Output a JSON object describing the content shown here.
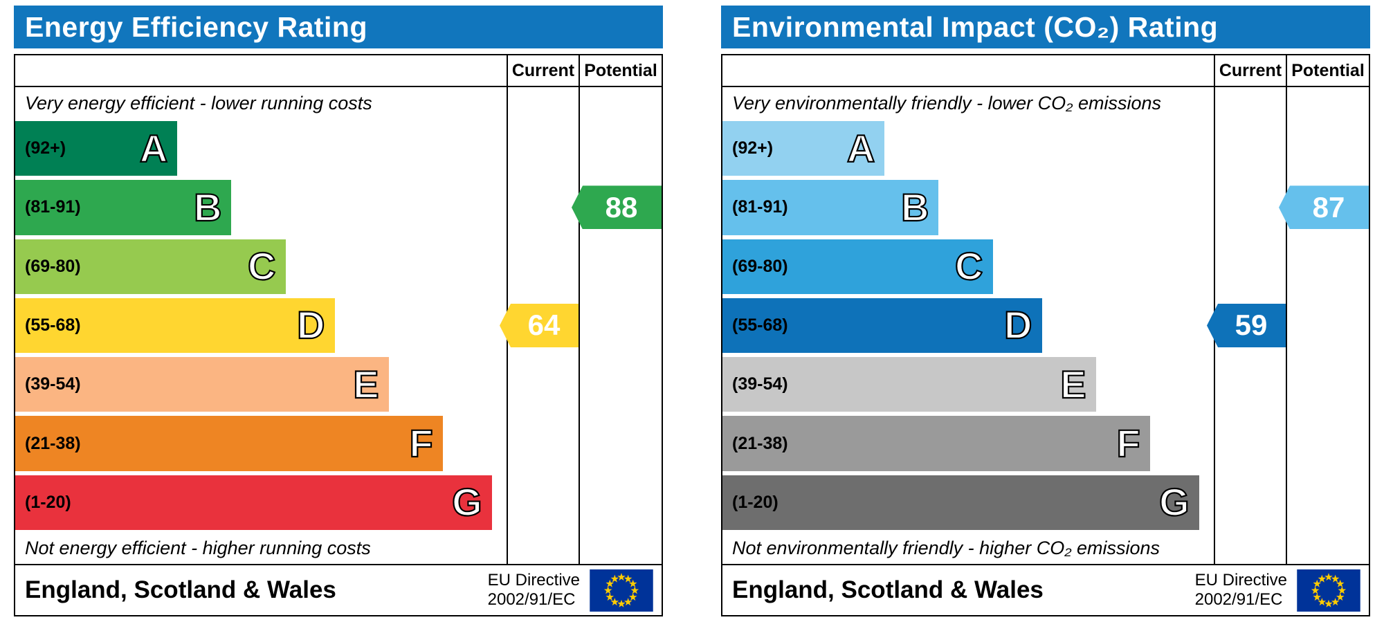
{
  "panels": [
    {
      "title": "Energy Efficiency Rating",
      "header_bg": "#1176bd",
      "columns": {
        "current": "Current",
        "potential": "Potential"
      },
      "top_note": "Very energy efficient - lower running costs",
      "bottom_note": "Not energy efficient - higher running costs",
      "bands": [
        {
          "letter": "A",
          "range": "(92+)",
          "color": "#008054",
          "width_pct": 33
        },
        {
          "letter": "B",
          "range": "(81-91)",
          "color": "#2ea84f",
          "width_pct": 44
        },
        {
          "letter": "C",
          "range": "(69-80)",
          "color": "#96ca4f",
          "width_pct": 55
        },
        {
          "letter": "D",
          "range": "(55-68)",
          "color": "#ffd630",
          "width_pct": 65
        },
        {
          "letter": "E",
          "range": "(39-54)",
          "color": "#fbb582",
          "width_pct": 76
        },
        {
          "letter": "F",
          "range": "(21-38)",
          "color": "#ee8523",
          "width_pct": 87
        },
        {
          "letter": "G",
          "range": "(1-20)",
          "color": "#e9323d",
          "width_pct": 97
        }
      ],
      "current": {
        "value": "64",
        "band": "D",
        "color": "#ffd630"
      },
      "potential": {
        "value": "88",
        "band": "B",
        "color": "#2ea84f"
      },
      "footer": {
        "region": "England, Scotland & Wales",
        "directive_line1": "EU Directive",
        "directive_line2": "2002/91/EC"
      }
    },
    {
      "title": "Environmental Impact (CO₂) Rating",
      "header_bg": "#1176bd",
      "columns": {
        "current": "Current",
        "potential": "Potential"
      },
      "top_note": "Very environmentally friendly - lower CO₂ emissions",
      "bottom_note": "Not environmentally friendly - higher CO₂ emissions",
      "bands": [
        {
          "letter": "A",
          "range": "(92+)",
          "color": "#92d1f0",
          "width_pct": 33
        },
        {
          "letter": "B",
          "range": "(81-91)",
          "color": "#65c0ec",
          "width_pct": 44
        },
        {
          "letter": "C",
          "range": "(69-80)",
          "color": "#2fa2db",
          "width_pct": 55
        },
        {
          "letter": "D",
          "range": "(55-68)",
          "color": "#0e72b9",
          "width_pct": 65
        },
        {
          "letter": "E",
          "range": "(39-54)",
          "color": "#c7c7c7",
          "width_pct": 76
        },
        {
          "letter": "F",
          "range": "(21-38)",
          "color": "#9a9a9a",
          "width_pct": 87
        },
        {
          "letter": "G",
          "range": "(1-20)",
          "color": "#6e6e6e",
          "width_pct": 97
        }
      ],
      "current": {
        "value": "59",
        "band": "D",
        "color": "#0e72b9"
      },
      "potential": {
        "value": "87",
        "band": "B",
        "color": "#65c0ec"
      },
      "footer": {
        "region": "England, Scotland & Wales",
        "directive_line1": "EU Directive",
        "directive_line2": "2002/91/EC"
      }
    }
  ],
  "eu_flag_colors": {
    "background": "#003399",
    "stars": "#ffcc00"
  },
  "chart_data": [
    {
      "type": "bar",
      "title": "Energy Efficiency Rating",
      "categories": [
        "A (92+)",
        "B (81-91)",
        "C (69-80)",
        "D (55-68)",
        "E (39-54)",
        "F (21-38)",
        "G (1-20)"
      ],
      "band_colors": [
        "#008054",
        "#2ea84f",
        "#96ca4f",
        "#ffd630",
        "#fbb582",
        "#ee8523",
        "#e9323d"
      ],
      "series": [
        {
          "name": "Current",
          "value": 64,
          "band": "D"
        },
        {
          "name": "Potential",
          "value": 88,
          "band": "B"
        }
      ],
      "scale_min": 1,
      "scale_max": 100,
      "top_annotation": "Very energy efficient - lower running costs",
      "bottom_annotation": "Not energy efficient - higher running costs",
      "region": "England, Scotland & Wales",
      "directive": "EU Directive 2002/91/EC"
    },
    {
      "type": "bar",
      "title": "Environmental Impact (CO₂) Rating",
      "categories": [
        "A (92+)",
        "B (81-91)",
        "C (69-80)",
        "D (55-68)",
        "E (39-54)",
        "F (21-38)",
        "G (1-20)"
      ],
      "band_colors": [
        "#92d1f0",
        "#65c0ec",
        "#2fa2db",
        "#0e72b9",
        "#c7c7c7",
        "#9a9a9a",
        "#6e6e6e"
      ],
      "series": [
        {
          "name": "Current",
          "value": 59,
          "band": "D"
        },
        {
          "name": "Potential",
          "value": 87,
          "band": "B"
        }
      ],
      "scale_min": 1,
      "scale_max": 100,
      "top_annotation": "Very environmentally friendly - lower CO₂ emissions",
      "bottom_annotation": "Not environmentally friendly - higher CO₂ emissions",
      "region": "England, Scotland & Wales",
      "directive": "EU Directive 2002/91/EC"
    }
  ]
}
